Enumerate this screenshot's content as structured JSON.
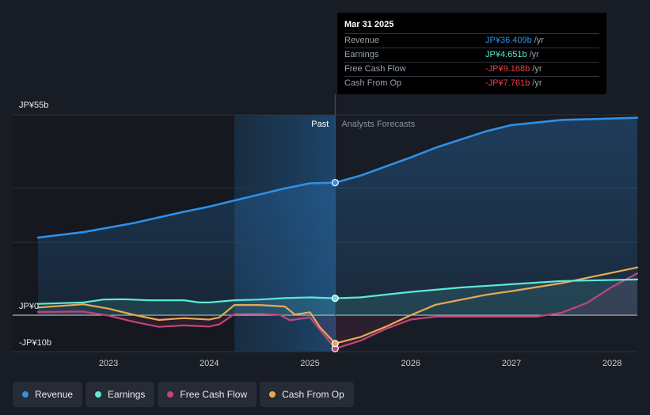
{
  "chart_data": {
    "type": "line",
    "currency_unit": "JPY billions",
    "y_axis_labels": [
      {
        "value": 55,
        "label": "JP¥55b"
      },
      {
        "value": 0,
        "label": "JP¥0"
      },
      {
        "value": -10,
        "label": "-JP¥10b"
      }
    ],
    "ylim": [
      -10,
      55
    ],
    "xlim": [
      2022.3,
      2028.25
    ],
    "x_ticks": [
      {
        "value": 2023,
        "label": "2023"
      },
      {
        "value": 2024,
        "label": "2024"
      },
      {
        "value": 2025,
        "label": "2025"
      },
      {
        "value": 2026,
        "label": "2026"
      },
      {
        "value": 2027,
        "label": "2027"
      },
      {
        "value": 2028,
        "label": "2028"
      }
    ],
    "past_label": "Past",
    "forecast_label": "Analysts Forecasts",
    "divider_x": 2025.25,
    "shade_start_x": 2024.25,
    "series": [
      {
        "name": "Revenue",
        "color": "#2f8fe8",
        "fill": true,
        "points": [
          [
            2022.3,
            21.3
          ],
          [
            2022.75,
            22.8
          ],
          [
            2023.25,
            25.3
          ],
          [
            2023.75,
            28.4
          ],
          [
            2024.0,
            29.8
          ],
          [
            2024.25,
            31.5
          ],
          [
            2024.75,
            34.8
          ],
          [
            2025.0,
            36.2
          ],
          [
            2025.25,
            36.4
          ],
          [
            2025.5,
            38.3
          ],
          [
            2026.0,
            43.3
          ],
          [
            2026.25,
            46.0
          ],
          [
            2026.75,
            50.5
          ],
          [
            2027.0,
            52.2
          ],
          [
            2027.5,
            53.6
          ],
          [
            2028.25,
            54.2
          ]
        ]
      },
      {
        "name": "Earnings",
        "color": "#5ee8d6",
        "fill": true,
        "points": [
          [
            2022.3,
            3.1
          ],
          [
            2022.75,
            3.5
          ],
          [
            2022.95,
            4.3
          ],
          [
            2023.15,
            4.4
          ],
          [
            2023.4,
            4.1
          ],
          [
            2023.75,
            4.1
          ],
          [
            2023.9,
            3.5
          ],
          [
            2024.0,
            3.5
          ],
          [
            2024.25,
            4.1
          ],
          [
            2024.5,
            4.3
          ],
          [
            2024.75,
            4.7
          ],
          [
            2025.0,
            4.9
          ],
          [
            2025.25,
            4.65
          ],
          [
            2025.5,
            4.9
          ],
          [
            2026.0,
            6.4
          ],
          [
            2026.5,
            7.6
          ],
          [
            2027.0,
            8.5
          ],
          [
            2027.5,
            9.4
          ],
          [
            2028.25,
            9.8
          ]
        ]
      },
      {
        "name": "Free Cash Flow",
        "color": "#c0457a",
        "fill": false,
        "points": [
          [
            2022.3,
            0.9
          ],
          [
            2022.75,
            1.0
          ],
          [
            2023.0,
            -0.1
          ],
          [
            2023.25,
            -1.8
          ],
          [
            2023.5,
            -3.2
          ],
          [
            2023.75,
            -2.8
          ],
          [
            2024.0,
            -3.1
          ],
          [
            2024.1,
            -2.5
          ],
          [
            2024.25,
            0.3
          ],
          [
            2024.5,
            0.4
          ],
          [
            2024.7,
            0.1
          ],
          [
            2024.8,
            -1.4
          ],
          [
            2025.0,
            -0.6
          ],
          [
            2025.1,
            -4.0
          ],
          [
            2025.25,
            -9.17
          ],
          [
            2025.5,
            -7.0
          ],
          [
            2025.75,
            -3.8
          ],
          [
            2026.0,
            -1.2
          ],
          [
            2026.25,
            -0.4
          ],
          [
            2027.25,
            -0.4
          ],
          [
            2027.5,
            0.7
          ],
          [
            2027.75,
            3.4
          ],
          [
            2028.0,
            7.8
          ],
          [
            2028.25,
            11.5
          ]
        ]
      },
      {
        "name": "Cash From Op",
        "color": "#e8a957",
        "fill": false,
        "points": [
          [
            2022.3,
            2.1
          ],
          [
            2022.75,
            3.0
          ],
          [
            2023.0,
            1.8
          ],
          [
            2023.25,
            0.1
          ],
          [
            2023.5,
            -1.3
          ],
          [
            2023.75,
            -0.8
          ],
          [
            2024.0,
            -1.2
          ],
          [
            2024.1,
            -0.6
          ],
          [
            2024.25,
            2.8
          ],
          [
            2024.5,
            2.8
          ],
          [
            2024.75,
            2.4
          ],
          [
            2024.85,
            0.2
          ],
          [
            2025.0,
            0.8
          ],
          [
            2025.1,
            -3.3
          ],
          [
            2025.25,
            -7.76
          ],
          [
            2025.5,
            -6.0
          ],
          [
            2025.75,
            -3.2
          ],
          [
            2026.0,
            0.0
          ],
          [
            2026.25,
            2.9
          ],
          [
            2026.75,
            5.6
          ],
          [
            2027.0,
            6.6
          ],
          [
            2027.5,
            8.8
          ],
          [
            2028.25,
            13.1
          ]
        ]
      }
    ],
    "marker_x": 2025.25
  },
  "tooltip": {
    "date": "Mar 31 2025",
    "rows": [
      {
        "label": "Revenue",
        "value": "JP¥36.409b",
        "unit": "/yr",
        "color": "#2f8fe8"
      },
      {
        "label": "Earnings",
        "value": "JP¥4.651b",
        "unit": "/yr",
        "color": "#5ee8d6"
      },
      {
        "label": "Free Cash Flow",
        "value": "-JP¥9.168b",
        "unit": "/yr",
        "color": "#e8424a"
      },
      {
        "label": "Cash From Op",
        "value": "-JP¥7.761b",
        "unit": "/yr",
        "color": "#e8424a"
      }
    ]
  },
  "legend": [
    {
      "label": "Revenue",
      "color": "#2f8fe8"
    },
    {
      "label": "Earnings",
      "color": "#5ee8d6"
    },
    {
      "label": "Free Cash Flow",
      "color": "#c0457a"
    },
    {
      "label": "Cash From Op",
      "color": "#e8a957"
    }
  ]
}
